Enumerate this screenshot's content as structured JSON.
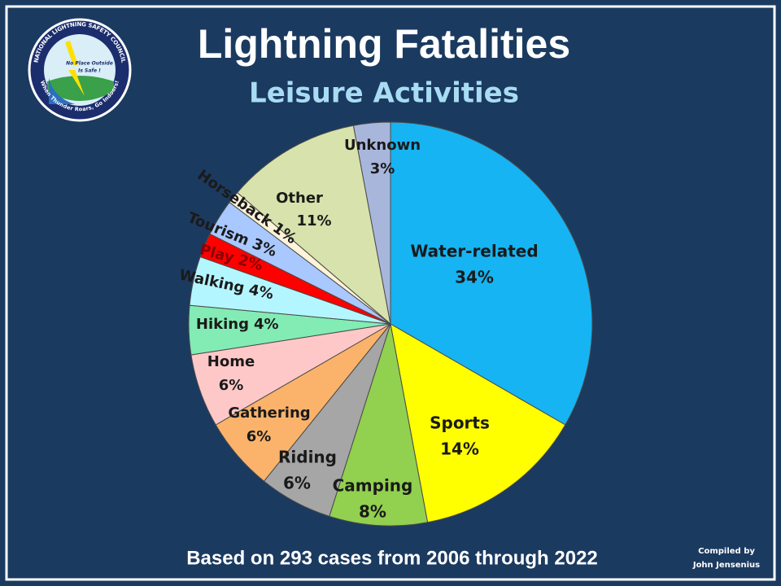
{
  "chart_data": {
    "type": "pie",
    "title": "Lightning Fatalities",
    "subtitle": "Leisure Activities",
    "categories": [
      "Water-related",
      "Sports",
      "Camping",
      "Riding",
      "Gathering",
      "Home",
      "Hiking",
      "Walking",
      "Play",
      "Tourism",
      "Horseback",
      "Other",
      "Unknown"
    ],
    "values": [
      34,
      14,
      8,
      6,
      6,
      6,
      4,
      4,
      2,
      3,
      1,
      11,
      3
    ],
    "value_labels": [
      "34%",
      "14%",
      "8%",
      "6%",
      "6%",
      "6%",
      "4%",
      "4%",
      "2%",
      "3%",
      "1%",
      "11%",
      "3%"
    ],
    "colors": [
      "#16b4f2",
      "#ffff00",
      "#92d050",
      "#a6a6a6",
      "#fbb36b",
      "#ffc8c8",
      "#82ecb4",
      "#b4f6ff",
      "#ff0000",
      "#a9c8ff",
      "#fff3d8",
      "#d8e2ac",
      "#a9b6dc"
    ],
    "footnote": "Based on 293 cases from 2006 through 2022",
    "credit": [
      "Compiled by",
      "John Jensenius"
    ]
  },
  "logo": {
    "ring": "NATIONAL LIGHTNING SAFETY COUNCIL",
    "motto": [
      "No Place Outside",
      "Is Safe !"
    ],
    "bottom": "When Thunder Roars, Go Indoors!"
  }
}
